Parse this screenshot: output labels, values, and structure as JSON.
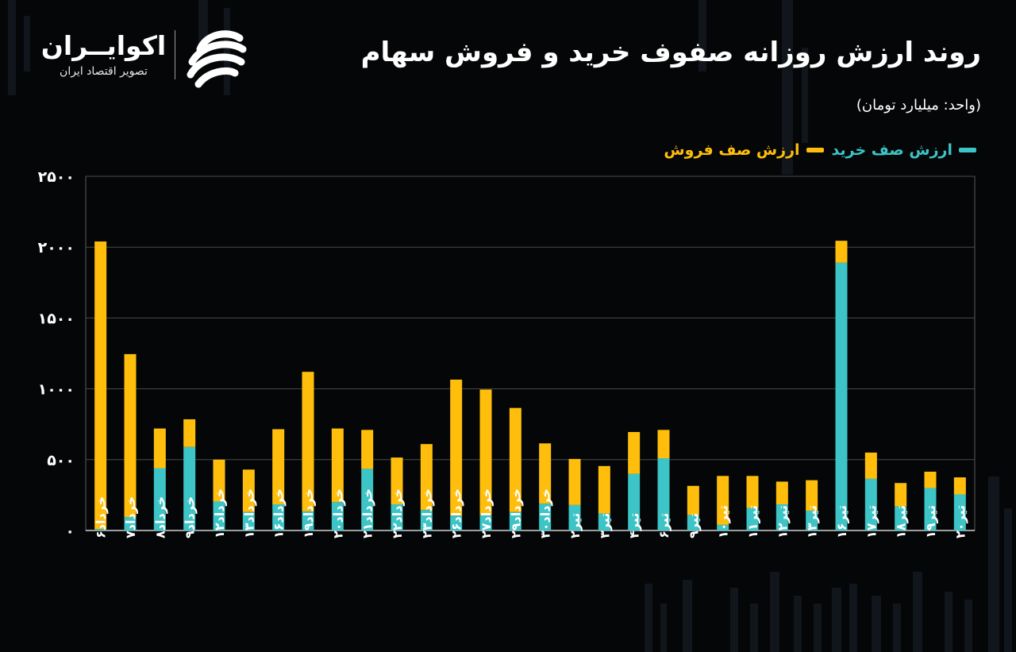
{
  "title": "روند ارزش روزانه صفوف خرید و فروش سهام",
  "unit_label": "(واحد: میلیارد تومان)",
  "logo": {
    "name": "اکوایــران",
    "tagline": "تصویر اقتصاد ایران",
    "mark": "ekoiran-logo-mark"
  },
  "colors": {
    "buy": "#3cc4c6",
    "sell": "#ffbe0b",
    "background": "#050607",
    "grid": "#4a4a4a"
  },
  "chart_data": {
    "type": "bar",
    "stacked": true,
    "title": "روند ارزش روزانه صفوف خرید و فروش سهام",
    "ylim": [
      0,
      2500
    ],
    "yticks": [
      "۰",
      "۵۰۰",
      "۱۰۰۰",
      "۱۵۰۰",
      "۲۰۰۰",
      "۲۵۰۰"
    ],
    "ytick_values": [
      0,
      500,
      1000,
      1500,
      2000,
      2500
    ],
    "grid": true,
    "legend_position": "top-right",
    "categories": [
      "خرداد۶",
      "خرداد۷",
      "خرداد۸",
      "خرداد۹",
      "خرداد۱۲",
      "خرداد۱۳",
      "خرداد۱۶",
      "خرداد۱۹",
      "خرداد۲۰",
      "خرداد۲۱",
      "خرداد۲۲",
      "خرداد۲۳",
      "خرداد۲۶",
      "خرداد۲۷",
      "خرداد۲۹",
      "خرداد۳۰",
      "تیر۲",
      "تیر۳",
      "تیر۴",
      "تیر۶",
      "تیر۹",
      "تیر۱۰",
      "تیر۱۱",
      "تیر۱۲",
      "تیر۱۳",
      "تیر۱۶",
      "تیر۱۷",
      "تیر۱۸",
      "تیر۱۹",
      "تیر۲۰"
    ],
    "series": [
      {
        "name": "ارزش صف خرید",
        "color": "#3cc4c6",
        "values": [
          10,
          95,
          440,
          590,
          205,
          130,
          185,
          135,
          200,
          435,
          185,
          145,
          105,
          110,
          130,
          190,
          180,
          120,
          400,
          510,
          110,
          40,
          160,
          185,
          140,
          1890,
          365,
          170,
          300,
          255
        ]
      },
      {
        "name": "ارزش صف فروش",
        "color": "#ffbe0b",
        "values": [
          2030,
          1150,
          280,
          195,
          295,
          300,
          530,
          985,
          520,
          275,
          330,
          465,
          960,
          885,
          735,
          425,
          325,
          335,
          295,
          200,
          205,
          345,
          225,
          160,
          215,
          155,
          185,
          165,
          115,
          120
        ]
      }
    ]
  }
}
